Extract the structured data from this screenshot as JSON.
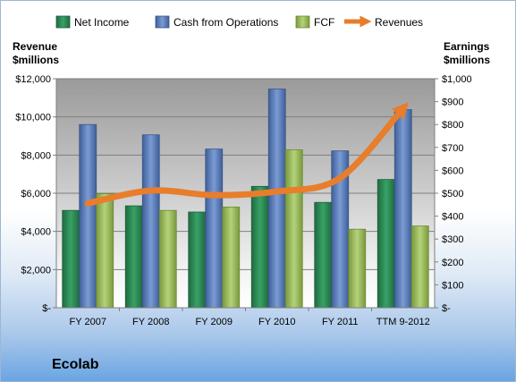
{
  "chart_data": {
    "type": "bar",
    "title": "Ecolab",
    "categories": [
      "FY 2007",
      "FY 2008",
      "FY 2009",
      "FY 2010",
      "FY 2011",
      "TTM 9-2012"
    ],
    "left_axis": {
      "label_line1": "Revenue",
      "label_line2": "$millions",
      "ticks": [
        "$-",
        "$2,000",
        "$4,000",
        "$6,000",
        "$8,000",
        "$10,000",
        "$12,000"
      ],
      "ylim": [
        0,
        12000
      ]
    },
    "right_axis": {
      "label_line1": "Earnings",
      "label_line2": "$millions",
      "ticks": [
        "$-",
        "$100",
        "$200",
        "$300",
        "$400",
        "$500",
        "$600",
        "$700",
        "$800",
        "$900",
        "$1,000"
      ],
      "ylim": [
        0,
        1000
      ]
    },
    "series": [
      {
        "name": "Net Income",
        "type": "bar",
        "axis": "right",
        "color": "#2e8b57",
        "values": [
          425,
          445,
          418,
          530,
          460,
          560
        ]
      },
      {
        "name": "Cash from Operations",
        "type": "bar",
        "axis": "right",
        "color": "#5b7fbd",
        "values": [
          800,
          755,
          693,
          955,
          685,
          865
        ]
      },
      {
        "name": "FCF",
        "type": "bar",
        "axis": "right",
        "color": "#9bbb59",
        "values": [
          498,
          425,
          440,
          690,
          343,
          357
        ]
      },
      {
        "name": "Revenues",
        "type": "line",
        "axis": "left",
        "color": "#e87d2c",
        "values": [
          5470,
          6140,
          5900,
          6090,
          6800,
          10450
        ]
      }
    ],
    "legend_position": "top",
    "grid": true
  }
}
